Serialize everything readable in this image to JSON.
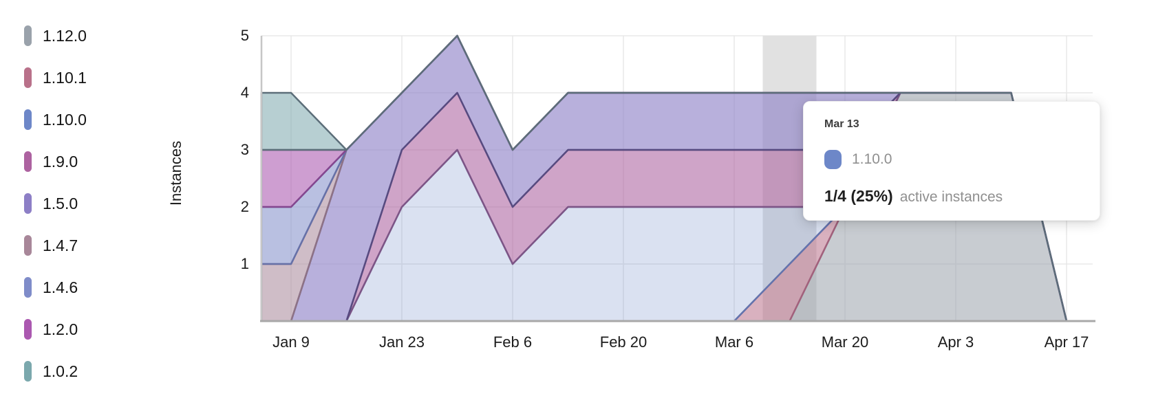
{
  "y_axis": {
    "title": "Instances",
    "ticks": [
      1,
      2,
      3,
      4,
      5
    ]
  },
  "x_axis": {
    "tick_labels": [
      "Jan 9",
      "Jan 23",
      "Feb 6",
      "Feb 20",
      "Mar 6",
      "Mar 20",
      "Apr 3",
      "Apr 17"
    ]
  },
  "tooltip": {
    "date": "Mar 13",
    "series": "1.10.0",
    "series_color": "#6d87c8",
    "value": "1/4 (25%)",
    "caption": "active instances"
  },
  "chart_data": {
    "type": "area",
    "stacked": true,
    "stack_order": "first-listed-at-bottom",
    "title": "",
    "xlabel": "",
    "ylabel": "Instances",
    "ylim": [
      0,
      5
    ],
    "grid": true,
    "legend_position": "left",
    "x": [
      "Jan 9",
      "Jan 16",
      "Jan 23",
      "Jan 30",
      "Feb 6",
      "Feb 13",
      "Feb 20",
      "Feb 27",
      "Mar 6",
      "Mar 13",
      "Mar 20",
      "Mar 27",
      "Apr 3",
      "Apr 10",
      "Apr 17"
    ],
    "hovered_index": 9,
    "hover_band_color": "#e1e1e1",
    "grid_color": "#e8e8e8",
    "axis_line_color": "#c6c6c6",
    "baseline_color": "#a8a8a8",
    "series": [
      {
        "name": "1.12.0",
        "color": "#9aa2ab",
        "line_color": "#868e98",
        "fill_opacity": 0.55,
        "values": [
          0,
          0,
          0,
          0,
          0,
          0,
          0,
          0,
          0,
          0,
          2,
          4,
          4,
          4,
          0
        ]
      },
      {
        "name": "1.10.1",
        "color": "#b9718a",
        "line_color": "#a2617c",
        "fill_opacity": 0.55,
        "values": [
          0,
          0,
          0,
          0,
          0,
          0,
          0,
          0,
          0,
          1,
          0,
          0,
          0,
          0,
          0
        ]
      },
      {
        "name": "1.10.0",
        "color": "#6d87c8",
        "line_color": "#6274ae",
        "fill_opacity": 0.25,
        "values": [
          0,
          0,
          2,
          3,
          1,
          2,
          2,
          2,
          2,
          1,
          0,
          0,
          0,
          0,
          0
        ]
      },
      {
        "name": "1.9.0",
        "color": "#ad62a0",
        "line_color": "#7d5586",
        "fill_opacity": 0.58,
        "values": [
          0,
          0,
          1,
          1,
          1,
          1,
          1,
          1,
          1,
          1,
          1,
          0,
          0,
          0,
          0
        ]
      },
      {
        "name": "1.5.0",
        "color": "#8d7fc6",
        "line_color": "#574b80",
        "fill_opacity": 0.62,
        "values": [
          0,
          3,
          1,
          1,
          1,
          1,
          1,
          1,
          1,
          1,
          1,
          0,
          0,
          0,
          0
        ]
      },
      {
        "name": "1.4.7",
        "color": "#a88799",
        "line_color": "#8d7286",
        "fill_opacity": 0.55,
        "values": [
          1,
          0,
          0,
          0,
          0,
          0,
          0,
          0,
          0,
          0,
          0,
          0,
          0,
          0,
          0
        ]
      },
      {
        "name": "1.4.6",
        "color": "#7f8cc9",
        "line_color": "#6671a8",
        "fill_opacity": 0.55,
        "values": [
          1,
          0,
          0,
          0,
          0,
          0,
          0,
          0,
          0,
          0,
          0,
          0,
          0,
          0,
          0
        ]
      },
      {
        "name": "1.2.0",
        "color": "#ab58b0",
        "line_color": "#84478f",
        "fill_opacity": 0.58,
        "values": [
          1,
          0,
          0,
          0,
          0,
          0,
          0,
          0,
          0,
          0,
          0,
          0,
          0,
          0,
          0
        ]
      },
      {
        "name": "1.0.2",
        "color": "#7ba8ad",
        "line_color": "#5c6e79",
        "fill_opacity": 0.55,
        "values": [
          1,
          0,
          0,
          0,
          0,
          0,
          0,
          0,
          0,
          0,
          0,
          0,
          0,
          0,
          0
        ]
      }
    ],
    "legend_items": [
      "1.12.0",
      "1.10.1",
      "1.10.0",
      "1.9.0",
      "1.5.0",
      "1.4.7",
      "1.4.6",
      "1.2.0",
      "1.0.2"
    ]
  }
}
